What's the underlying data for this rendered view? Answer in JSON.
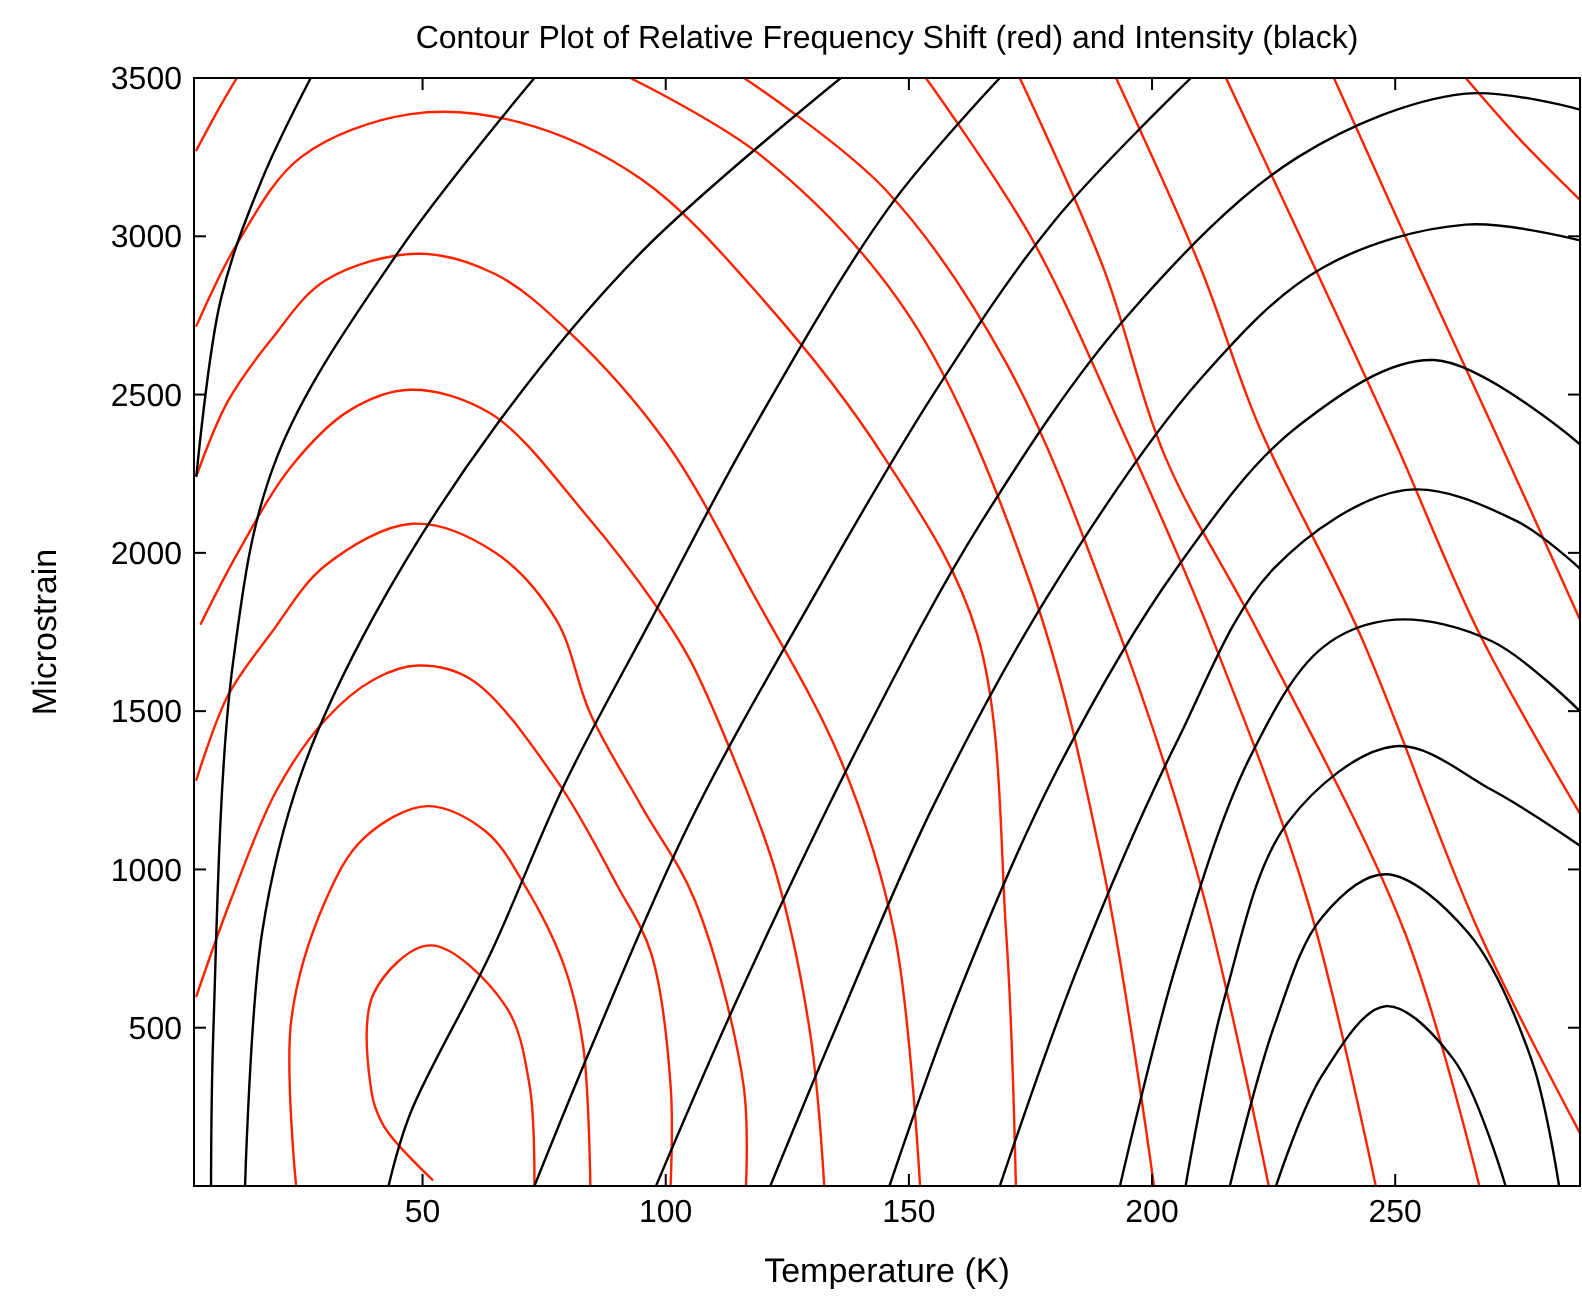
{
  "chart_data": {
    "type": "line",
    "title": "Contour Plot of Relative Frequency Shift (red) and Intensity (black)",
    "xlabel": "Temperature (K)",
    "ylabel": "Microstrain",
    "xlim": [
      3,
      288
    ],
    "ylim": [
      0,
      3500
    ],
    "xticks": [
      50,
      100,
      150,
      200,
      250
    ],
    "yticks": [
      500,
      1000,
      1500,
      2000,
      2500,
      3000,
      3500
    ],
    "marker": "none",
    "line_style": "solid",
    "series": [
      {
        "color": "#ff2200",
        "x": [
          73,
          72,
          67,
          51.6,
          40,
          39.3,
          42,
          52
        ],
        "values": [
          0,
          318,
          570,
          760,
          610,
          318,
          190,
          20
        ]
      },
      {
        "color": "#ff2200",
        "x": [
          24,
          23,
          30,
          38,
          51,
          63,
          71,
          79,
          83,
          84.5
        ],
        "values": [
          0,
          524,
          900,
          1100,
          1200,
          1120,
          950,
          700,
          445,
          0
        ]
      },
      {
        "color": "#ff2200",
        "x": [
          3.5,
          10.6,
          20,
          30,
          40,
          49,
          60,
          77.5,
          90,
          97,
          101,
          101
        ],
        "values": [
          600,
          905,
          1250,
          1473,
          1600,
          1644,
          1600,
          1283,
          950,
          735,
          318,
          0
        ]
      },
      {
        "color": "#ff2200",
        "x": [
          3.5,
          10,
          18.8,
          30,
          48,
          65,
          77.5,
          84.5,
          95,
          106,
          116,
          116.5
        ],
        "values": [
          1283,
          1550,
          1745,
          1960,
          2092,
          2000,
          1788,
          1492,
          1200,
          902,
          318,
          0
        ]
      },
      {
        "color": "#ff2200",
        "x": [
          4.4,
          12,
          23,
          35,
          47.5,
          64,
          83.5,
          98,
          105,
          114,
          122.7,
          129.7,
          132.6
        ],
        "values": [
          1776,
          2000,
          2273,
          2450,
          2515,
          2440,
          2122,
          1833,
          1662,
          1350,
          987,
          482,
          0
        ]
      },
      {
        "color": "#ff2200",
        "x": [
          3.5,
          10,
          18.8,
          30,
          49,
          65,
          80,
          100,
          118,
          136,
          147,
          152.3
        ],
        "values": [
          2243,
          2480,
          2672,
          2860,
          2945,
          2880,
          2700,
          2350,
          1870,
          1345,
          800,
          0
        ]
      },
      {
        "color": "#ff2200",
        "x": [
          3.5,
          12,
          25,
          47.5,
          70,
          95,
          120,
          145,
          164,
          170,
          172
        ],
        "values": [
          2717,
          2980,
          3250,
          3386,
          3360,
          3180,
          2800,
          2300,
          1745,
          800,
          0
        ]
      },
      {
        "color": "#ff2200",
        "x": [
          3.5,
          8,
          11.8
        ],
        "values": [
          3272,
          3400,
          3500
        ]
      },
      {
        "color": "#ff2200",
        "x": [
          92.7,
          120,
          150,
          175,
          190,
          200.4
        ],
        "values": [
          3500,
          3250,
          2750,
          1900,
          1000,
          0
        ]
      },
      {
        "color": "#ff2200",
        "x": [
          116.1,
          145,
          170,
          192,
          210,
          224
        ],
        "values": [
          3500,
          3150,
          2600,
          1800,
          950,
          0
        ]
      },
      {
        "color": "#ff2200",
        "x": [
          153.5,
          175,
          195,
          212,
          232,
          246
        ],
        "values": [
          3500,
          3000,
          2350,
          1745,
          900,
          0
        ]
      },
      {
        "color": "#ff2200",
        "x": [
          172.8,
          190,
          202.8,
          222,
          252,
          267.3
        ],
        "values": [
          3500,
          2900,
          2300,
          1745,
          800,
          0
        ]
      },
      {
        "color": "#ff2200",
        "x": [
          192.6,
          210,
          222,
          242.7,
          267.3,
          288
        ],
        "values": [
          3500,
          2900,
          2400,
          1745,
          800,
          167
        ]
      },
      {
        "color": "#ff2200",
        "x": [
          215.2,
          235,
          250,
          267.3,
          288
        ],
        "values": [
          3500,
          2850,
          2350,
          1745,
          1176
        ]
      },
      {
        "color": "#ff2200",
        "x": [
          237.4,
          255,
          270,
          288
        ],
        "values": [
          3500,
          2900,
          2400,
          1789
        ]
      },
      {
        "color": "#ff2200",
        "x": [
          264.5,
          276,
          288
        ],
        "values": [
          3500,
          3300,
          3115
        ]
      },
      {
        "color": "#000000",
        "x": [
          225.5,
          235,
          248,
          262,
          272.7
        ],
        "values": [
          0,
          350,
          568,
          400,
          0
        ]
      },
      {
        "color": "#000000",
        "x": [
          216,
          225,
          235,
          248,
          265,
          278,
          283.7
        ],
        "values": [
          0,
          500,
          850,
          985,
          800,
          400,
          0
        ]
      },
      {
        "color": "#000000",
        "x": [
          206.9,
          215,
          228,
          250,
          270,
          288
        ],
        "values": [
          0,
          600,
          1150,
          1389,
          1250,
          1075
        ]
      },
      {
        "color": "#000000",
        "x": [
          193.4,
          205,
          220,
          235,
          250,
          270,
          288
        ],
        "values": [
          0,
          700,
          1350,
          1700,
          1789,
          1720,
          1500
        ]
      },
      {
        "color": "#000000",
        "x": [
          168.7,
          185,
          205,
          225,
          252,
          275,
          288
        ],
        "values": [
          0,
          700,
          1400,
          1950,
          2198,
          2100,
          1950
        ]
      },
      {
        "color": "#000000",
        "x": [
          146,
          160,
          180,
          205,
          230,
          258,
          288
        ],
        "values": [
          0,
          600,
          1300,
          1950,
          2400,
          2609,
          2343
        ]
      },
      {
        "color": "#000000",
        "x": [
          121.5,
          135,
          155,
          180,
          210,
          235,
          264.5,
          288
        ],
        "values": [
          0,
          500,
          1200,
          1900,
          2550,
          2900,
          3037,
          2987
        ]
      },
      {
        "color": "#000000",
        "x": [
          98,
          115,
          140,
          165,
          195,
          230,
          264,
          288
        ],
        "values": [
          0,
          600,
          1400,
          2100,
          2750,
          3250,
          3450,
          3400
        ]
      },
      {
        "color": "#000000",
        "x": [
          73,
          85,
          105,
          130,
          155,
          180,
          208
        ],
        "values": [
          0,
          450,
          1150,
          1850,
          2500,
          3050,
          3500
        ]
      },
      {
        "color": "#000000",
        "x": [
          43,
          47.5,
          64,
          79,
          97,
          117.4,
          146,
          168.7
        ],
        "values": [
          0,
          230,
          735,
          1263,
          1789,
          2376,
          3093,
          3500
        ]
      },
      {
        "color": "#000000",
        "x": [
          13.5,
          17,
          25,
          40,
          65,
          95,
          136
        ],
        "values": [
          0,
          800,
          1300,
          1800,
          2400,
          2950,
          3500
        ]
      },
      {
        "color": "#000000",
        "x": [
          6.5,
          7,
          11,
          20,
          45,
          73
        ],
        "values": [
          0,
          500,
          1650,
          2300,
          2950,
          3500
        ]
      },
      {
        "color": "#000000",
        "x": [
          3.5,
          8.5,
          17,
          27
        ],
        "values": [
          2243,
          2800,
          3180,
          3500
        ]
      }
    ]
  }
}
